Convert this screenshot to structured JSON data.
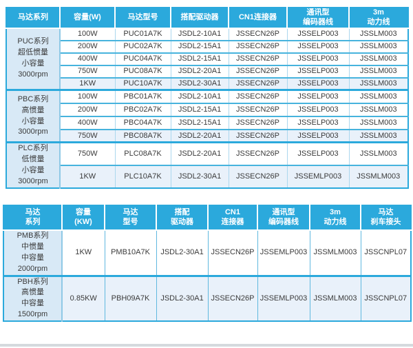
{
  "colors": {
    "header_bg": "#2BA9DC",
    "header_text": "#FFFFFF",
    "series_cell_bg": "#D8E9F6",
    "tinted_row_bg": "#E9F1FA",
    "grid_line": "#46B3DD",
    "outer_border": "#2BA9DC",
    "body_text": "#3A3A3A"
  },
  "table1": {
    "headers": [
      "马达系列",
      "容量(W)",
      "马达型号",
      "搭配驱动器",
      "CN1连接器",
      "通讯型\n编码器线",
      "3m\n动力线"
    ],
    "groups": [
      {
        "series": "PUC系列\n超低惯量\n小容量\n3000rpm",
        "tinted_rows": [
          4
        ],
        "rows": [
          [
            "100W",
            "PUC01A7K",
            "JSDL2-10A1",
            "JSSECN26P",
            "JSSELP003",
            "JSSLM003"
          ],
          [
            "200W",
            "PUC02A7K",
            "JSDL2-15A1",
            "JSSECN26P",
            "JSSELP003",
            "JSSLM003"
          ],
          [
            "400W",
            "PUC04A7K",
            "JSDL2-15A1",
            "JSSECN26P",
            "JSSELP003",
            "JSSLM003"
          ],
          [
            "750W",
            "PUC08A7K",
            "JSDL2-20A1",
            "JSSECN26P",
            "JSSELP003",
            "JSSLM003"
          ],
          [
            "1KW",
            "PUC10A7K",
            "JSDL2-30A1",
            "JSSECN26P",
            "JSSELP003",
            "JSSLM003"
          ]
        ]
      },
      {
        "series": "PBC系列\n高惯量\n小容量\n3000rpm",
        "tinted_rows": [
          3
        ],
        "rows": [
          [
            "100W",
            "PBC01A7K",
            "JSDL2-10A1",
            "JSSECN26P",
            "JSSELP003",
            "JSSLM003"
          ],
          [
            "200W",
            "PBC02A7K",
            "JSDL2-15A1",
            "JSSECN26P",
            "JSSELP003",
            "JSSLM003"
          ],
          [
            "400W",
            "PBC04A7K",
            "JSDL2-15A1",
            "JSSECN26P",
            "JSSELP003",
            "JSSLM003"
          ],
          [
            "750W",
            "PBC08A7K",
            "JSDL2-20A1",
            "JSSECN26P",
            "JSSELP003",
            "JSSLM003"
          ]
        ]
      },
      {
        "series": "PLC系列\n低惯量\n小容量\n3000rpm",
        "tinted_rows": [
          1
        ],
        "rows": [
          [
            "750W",
            "PLC08A7K",
            "JSDL2-20A1",
            "JSSECN26P",
            "JSSELP003",
            "JSSLM003"
          ],
          [
            "1KW",
            "PLC10A7K",
            "JSDL2-30A1",
            "JSSECN26P",
            "JSSEMLP003",
            "JSSMLM003"
          ]
        ]
      }
    ]
  },
  "table2": {
    "headers": [
      "马达\n系列",
      "容量\n(KW)",
      "马达\n型号",
      "搭配\n驱动器",
      "CN1\n连接器",
      "通讯型\n编码器线",
      "3m\n动力线",
      "马达\n刹车接头"
    ],
    "groups": [
      {
        "series": "PMB系列\n中惯量\n中容量\n2000rpm",
        "tinted_rows": [],
        "rows": [
          [
            "1KW",
            "PMB10A7K",
            "JSDL2-30A1",
            "JSSECN26P",
            "JSSEMLP003",
            "JSSMLM003",
            "JSSCNPL07"
          ]
        ]
      },
      {
        "series": "PBH系列\n高惯量\n中容量\n1500rpm",
        "tinted_rows": [
          0
        ],
        "rows": [
          [
            "0.85KW",
            "PBH09A7K",
            "JSDL2-30A1",
            "JSSECN26P",
            "JSSEMLP003",
            "JSSMLM003",
            "JSSCNPL07"
          ]
        ]
      }
    ]
  }
}
